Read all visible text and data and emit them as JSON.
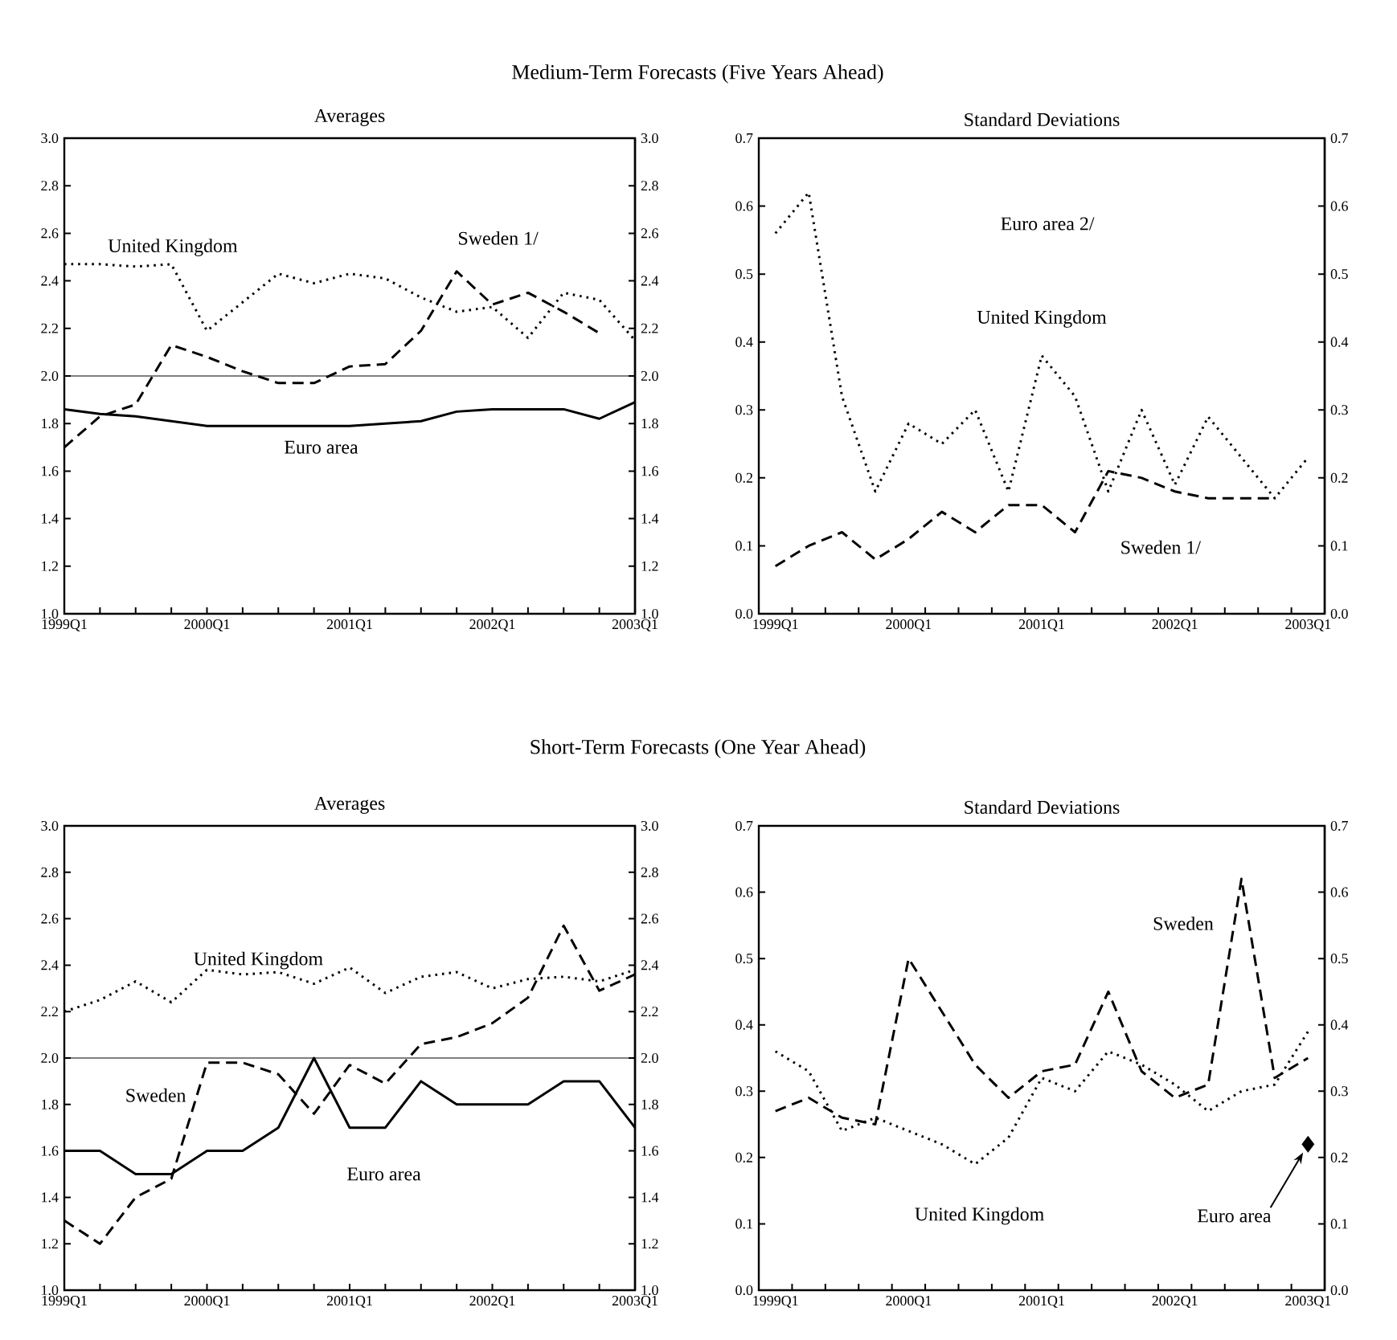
{
  "chart_data": [
    {
      "type": "line",
      "title": "Medium-Term Forecasts (Five Years Ahead)",
      "subtitle": "Averages",
      "categories": [
        "1999Q1",
        null,
        null,
        null,
        "2000Q1",
        null,
        null,
        null,
        "2001Q1",
        null,
        null,
        null,
        "2002Q1",
        null,
        null,
        null,
        "2003Q1"
      ],
      "series": [
        {
          "name": "United Kingdom",
          "color": "#000000",
          "line_style": "dotted",
          "values": [
            2.47,
            2.47,
            2.46,
            2.47,
            2.19,
            2.31,
            2.43,
            2.39,
            2.43,
            2.41,
            2.33,
            2.27,
            2.29,
            2.16,
            2.35,
            2.32,
            2.15
          ]
        },
        {
          "name": "Sweden 1/",
          "color": "#000000",
          "line_style": "dashed",
          "values": [
            1.7,
            1.83,
            1.88,
            2.13,
            2.08,
            2.02,
            1.97,
            1.97,
            2.04,
            2.05,
            2.19,
            2.44,
            2.3,
            2.35,
            2.27,
            2.18,
            null
          ]
        },
        {
          "name": "Euro area",
          "color": "#000000",
          "line_style": "solid",
          "values": [
            1.86,
            1.84,
            1.83,
            1.81,
            1.79,
            1.79,
            1.79,
            1.79,
            1.79,
            1.8,
            1.81,
            1.85,
            1.86,
            1.86,
            1.86,
            1.82,
            1.89
          ]
        }
      ],
      "ylim": [
        1.0,
        3.0
      ],
      "yticks": [
        {
          "value": 1.0,
          "label": "1.0"
        },
        {
          "value": 1.2,
          "label": "1.2"
        },
        {
          "value": 1.4,
          "label": "1.4"
        },
        {
          "value": 1.6,
          "label": "1.6"
        },
        {
          "value": 1.8,
          "label": "1.8"
        },
        {
          "value": 2.0,
          "label": "2.0"
        },
        {
          "value": 2.2,
          "label": "2.2"
        },
        {
          "value": 2.4,
          "label": "2.4"
        },
        {
          "value": 2.6,
          "label": "2.6"
        },
        {
          "value": 2.8,
          "label": "2.8"
        },
        {
          "value": 3.0,
          "label": "3.0"
        }
      ],
      "y2lim": [
        1.0,
        3.0
      ],
      "y2ticks": [
        {
          "value": 1.0,
          "label": "1.0"
        },
        {
          "value": 1.2,
          "label": "1.2"
        },
        {
          "value": 1.4,
          "label": "1.4"
        },
        {
          "value": 1.6,
          "label": "1.6"
        },
        {
          "value": 1.8,
          "label": "1.8"
        },
        {
          "value": 2.0,
          "label": "2.0"
        },
        {
          "value": 2.2,
          "label": "2.2"
        },
        {
          "value": 2.4,
          "label": "2.4"
        },
        {
          "value": 2.6,
          "label": "2.6"
        },
        {
          "value": 2.8,
          "label": "2.8"
        },
        {
          "value": 3.0,
          "label": "3.0"
        }
      ],
      "ref_lines": [
        {
          "axis": "y",
          "value": 2.0
        }
      ]
    },
    {
      "type": "line",
      "subtitle": "Standard Deviations",
      "categories": [
        "1999Q1",
        null,
        null,
        null,
        "2000Q1",
        null,
        null,
        null,
        "2001Q1",
        null,
        null,
        null,
        "2002Q1",
        null,
        null,
        null,
        "2003Q1"
      ],
      "series": [
        {
          "name": "United Kingdom",
          "color": "#000000",
          "line_style": "dotted",
          "values": [
            0.56,
            0.62,
            0.32,
            0.18,
            0.28,
            0.25,
            0.3,
            0.18,
            0.38,
            0.32,
            0.18,
            0.3,
            0.19,
            0.29,
            0.23,
            0.17,
            0.23
          ]
        },
        {
          "name": "Sweden 1/",
          "color": "#000000",
          "line_style": "dashed",
          "values": [
            0.07,
            0.1,
            0.12,
            0.08,
            0.11,
            0.15,
            0.12,
            0.16,
            0.16,
            0.12,
            0.21,
            0.2,
            0.18,
            0.17,
            0.17,
            0.17,
            null
          ]
        }
      ],
      "annotations": [
        "Euro area 2/"
      ],
      "ylim": [
        0.0,
        0.7
      ],
      "yticks": [
        {
          "value": 0.0,
          "label": "0.0"
        },
        {
          "value": 0.1,
          "label": "0.1"
        },
        {
          "value": 0.2,
          "label": "0.2"
        },
        {
          "value": 0.3,
          "label": "0.3"
        },
        {
          "value": 0.4,
          "label": "0.4"
        },
        {
          "value": 0.5,
          "label": "0.5"
        },
        {
          "value": 0.6,
          "label": "0.6"
        },
        {
          "value": 0.7,
          "label": "0.7"
        }
      ],
      "y2lim": [
        0.0,
        0.7
      ],
      "y2ticks": [
        {
          "value": 0.0,
          "label": "0.0"
        },
        {
          "value": 0.1,
          "label": "0.1"
        },
        {
          "value": 0.2,
          "label": "0.2"
        },
        {
          "value": 0.3,
          "label": "0.3"
        },
        {
          "value": 0.4,
          "label": "0.4"
        },
        {
          "value": 0.5,
          "label": "0.5"
        },
        {
          "value": 0.6,
          "label": "0.6"
        },
        {
          "value": 0.7,
          "label": "0.7"
        }
      ]
    },
    {
      "type": "line",
      "title": "Short-Term Forecasts (One Year Ahead)",
      "subtitle": "Averages",
      "categories": [
        "1999Q1",
        null,
        null,
        null,
        "2000Q1",
        null,
        null,
        null,
        "2001Q1",
        null,
        null,
        null,
        "2002Q1",
        null,
        null,
        null,
        "2003Q1"
      ],
      "series": [
        {
          "name": "United Kingdom",
          "color": "#000000",
          "line_style": "dotted",
          "values": [
            2.2,
            2.25,
            2.33,
            2.24,
            2.38,
            2.36,
            2.37,
            2.32,
            2.39,
            2.28,
            2.35,
            2.37,
            2.3,
            2.34,
            2.35,
            2.33,
            2.38
          ]
        },
        {
          "name": "Sweden",
          "color": "#000000",
          "line_style": "dashed",
          "values": [
            1.3,
            1.2,
            1.4,
            1.48,
            1.98,
            1.98,
            1.93,
            1.76,
            1.97,
            1.89,
            2.06,
            2.09,
            2.15,
            2.26,
            2.57,
            2.29,
            2.36
          ]
        },
        {
          "name": "Euro area",
          "color": "#000000",
          "line_style": "solid",
          "values": [
            1.6,
            1.6,
            1.5,
            1.5,
            1.6,
            1.6,
            1.7,
            2.0,
            1.7,
            1.7,
            1.9,
            1.8,
            1.8,
            1.8,
            1.9,
            1.9,
            1.7
          ]
        }
      ],
      "ylim": [
        1.0,
        3.0
      ],
      "yticks": [
        {
          "value": 1.0,
          "label": "1.0"
        },
        {
          "value": 1.2,
          "label": "1.2"
        },
        {
          "value": 1.4,
          "label": "1.4"
        },
        {
          "value": 1.6,
          "label": "1.6"
        },
        {
          "value": 1.8,
          "label": "1.8"
        },
        {
          "value": 2.0,
          "label": "2.0"
        },
        {
          "value": 2.2,
          "label": "2.2"
        },
        {
          "value": 2.4,
          "label": "2.4"
        },
        {
          "value": 2.6,
          "label": "2.6"
        },
        {
          "value": 2.8,
          "label": "2.8"
        },
        {
          "value": 3.0,
          "label": "3.0"
        }
      ],
      "y2lim": [
        1.0,
        3.0
      ],
      "y2ticks": [
        {
          "value": 1.0,
          "label": "1.0"
        },
        {
          "value": 1.2,
          "label": "1.2"
        },
        {
          "value": 1.4,
          "label": "1.4"
        },
        {
          "value": 1.6,
          "label": "1.6"
        },
        {
          "value": 1.8,
          "label": "1.8"
        },
        {
          "value": 2.0,
          "label": "2.0"
        },
        {
          "value": 2.2,
          "label": "2.2"
        },
        {
          "value": 2.4,
          "label": "2.4"
        },
        {
          "value": 2.6,
          "label": "2.6"
        },
        {
          "value": 2.8,
          "label": "2.8"
        },
        {
          "value": 3.0,
          "label": "3.0"
        }
      ],
      "ref_lines": [
        {
          "axis": "y",
          "value": 2.0
        }
      ]
    },
    {
      "type": "line",
      "subtitle": "Standard Deviations",
      "categories": [
        "1999Q1",
        null,
        null,
        null,
        "2000Q1",
        null,
        null,
        null,
        "2001Q1",
        null,
        null,
        null,
        "2002Q1",
        null,
        null,
        null,
        "2003Q1"
      ],
      "series": [
        {
          "name": "Sweden",
          "color": "#000000",
          "line_style": "dashed",
          "values": [
            0.27,
            0.29,
            0.26,
            0.25,
            0.5,
            0.42,
            0.34,
            0.29,
            0.33,
            0.34,
            0.45,
            0.33,
            0.29,
            0.31,
            0.62,
            0.32,
            0.35
          ]
        },
        {
          "name": "United Kingdom",
          "color": "#000000",
          "line_style": "dotted",
          "values": [
            0.36,
            0.33,
            0.24,
            0.26,
            0.24,
            0.22,
            0.19,
            0.23,
            0.32,
            0.3,
            0.36,
            0.34,
            0.31,
            0.27,
            0.3,
            0.31,
            0.39
          ]
        },
        {
          "name": "Euro area",
          "type": "scatter",
          "marker": "diamond",
          "color": "#000000",
          "values": [
            null,
            null,
            null,
            null,
            null,
            null,
            null,
            null,
            null,
            null,
            null,
            null,
            null,
            null,
            null,
            null,
            0.22
          ]
        }
      ],
      "ylim": [
        0.0,
        0.7
      ],
      "yticks": [
        {
          "value": 0.0,
          "label": "0.0"
        },
        {
          "value": 0.1,
          "label": "0.1"
        },
        {
          "value": 0.2,
          "label": "0.2"
        },
        {
          "value": 0.3,
          "label": "0.3"
        },
        {
          "value": 0.4,
          "label": "0.4"
        },
        {
          "value": 0.5,
          "label": "0.5"
        },
        {
          "value": 0.6,
          "label": "0.6"
        },
        {
          "value": 0.7,
          "label": "0.7"
        }
      ],
      "y2lim": [
        0.0,
        0.7
      ],
      "y2ticks": [
        {
          "value": 0.0,
          "label": "0.0"
        },
        {
          "value": 0.1,
          "label": "0.1"
        },
        {
          "value": 0.2,
          "label": "0.2"
        },
        {
          "value": 0.3,
          "label": "0.3"
        },
        {
          "value": 0.4,
          "label": "0.4"
        },
        {
          "value": 0.5,
          "label": "0.5"
        },
        {
          "value": 0.6,
          "label": "0.6"
        },
        {
          "value": 0.7,
          "label": "0.7"
        }
      ]
    }
  ]
}
